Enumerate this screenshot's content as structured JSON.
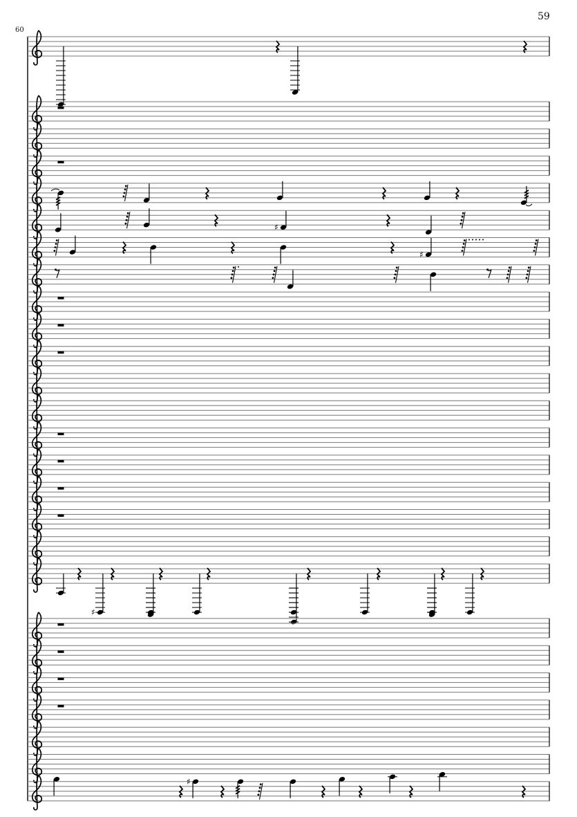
{
  "page_number": "59",
  "measure_number": "60",
  "clef": "treble",
  "colors": {
    "ink": "#000000",
    "staff_line": "#777777"
  },
  "staves": [
    {
      "events": [
        {
          "type": "note",
          "pitches": [
            "F1"
          ],
          "dur": "quarter"
        },
        {
          "type": "rest",
          "dur": "quarter"
        },
        {
          "type": "note",
          "pitches": [
            "D2"
          ],
          "dur": "quarter"
        },
        {
          "type": "rest",
          "dur": "quarter"
        }
      ]
    },
    {
      "events": [
        {
          "type": "rest",
          "dur": "whole"
        }
      ]
    },
    {
      "events": []
    },
    {
      "events": [
        {
          "type": "rest",
          "dur": "whole"
        }
      ]
    },
    {
      "events": [
        {
          "type": "note",
          "pitches": [
            "B4"
          ],
          "dur": "32nd",
          "tie_in": true
        },
        {
          "type": "rest",
          "dur": "32nd"
        },
        {
          "type": "note",
          "pitches": [
            "F4"
          ],
          "dur": "quarter"
        },
        {
          "type": "rest",
          "dur": "quarter"
        },
        {
          "type": "note",
          "pitches": [
            "G4"
          ],
          "dur": "quarter"
        },
        {
          "type": "rest",
          "dur": "quarter"
        },
        {
          "type": "note",
          "pitches": [
            "G4"
          ],
          "dur": "quarter"
        },
        {
          "type": "rest",
          "dur": "quarter"
        },
        {
          "type": "note",
          "pitches": [
            "E4"
          ],
          "dur": "32nd",
          "tie_out": true
        }
      ]
    },
    {
      "events": [
        {
          "type": "note",
          "pitches": [
            "E4"
          ],
          "dur": "quarter"
        },
        {
          "type": "rest",
          "dur": "32nd"
        },
        {
          "type": "note",
          "pitches": [
            "G4"
          ],
          "dur": "quarter"
        },
        {
          "type": "rest",
          "dur": "quarter"
        },
        {
          "type": "note",
          "pitches": [
            "F4"
          ],
          "acc": "#",
          "dur": "quarter"
        },
        {
          "type": "rest",
          "dur": "quarter"
        },
        {
          "type": "note",
          "pitches": [
            "D4"
          ],
          "dur": "quarter"
        },
        {
          "type": "rest",
          "dur": "32nd"
        }
      ]
    },
    {
      "events": [
        {
          "type": "rest",
          "dur": "32nd"
        },
        {
          "type": "note",
          "pitches": [
            "G4"
          ],
          "dur": "quarter"
        },
        {
          "type": "rest",
          "dur": "quarter"
        },
        {
          "type": "note",
          "pitches": [
            "B4"
          ],
          "dur": "quarter"
        },
        {
          "type": "rest",
          "dur": "quarter"
        },
        {
          "type": "note",
          "pitches": [
            "B4"
          ],
          "dur": "quarter"
        },
        {
          "type": "rest",
          "dur": "quarter"
        },
        {
          "type": "note",
          "pitches": [
            "F4"
          ],
          "acc": "#",
          "dur": "quarter"
        },
        {
          "type": "rest",
          "dur": "32nd",
          "dots": 5
        },
        {
          "type": "rest",
          "dur": "32nd"
        }
      ]
    },
    {
      "events": [
        {
          "type": "rest",
          "dur": "eighth"
        },
        {
          "type": "rest",
          "dur": "32nd",
          "dots": 1
        },
        {
          "type": "rest",
          "dur": "32nd"
        },
        {
          "type": "note",
          "pitches": [
            "D4"
          ],
          "dur": "quarter"
        },
        {
          "type": "rest",
          "dur": "32nd"
        },
        {
          "type": "note",
          "pitches": [
            "B4"
          ],
          "dur": "quarter"
        },
        {
          "type": "rest",
          "dur": "eighth"
        },
        {
          "type": "rest",
          "dur": "32nd"
        },
        {
          "type": "rest",
          "dur": "32nd"
        }
      ]
    },
    {
      "events": [
        {
          "type": "rest",
          "dur": "whole"
        }
      ]
    },
    {
      "events": [
        {
          "type": "rest",
          "dur": "whole"
        }
      ]
    },
    {
      "events": [
        {
          "type": "rest",
          "dur": "whole"
        }
      ]
    },
    {
      "events": []
    },
    {
      "events": []
    },
    {
      "events": [
        {
          "type": "rest",
          "dur": "whole"
        }
      ]
    },
    {
      "events": [
        {
          "type": "rest",
          "dur": "whole"
        }
      ]
    },
    {
      "events": [
        {
          "type": "rest",
          "dur": "whole"
        }
      ]
    },
    {
      "events": [
        {
          "type": "rest",
          "dur": "whole"
        }
      ]
    },
    {
      "events": []
    },
    {
      "events": [
        {
          "type": "note",
          "pitches": [
            "A3"
          ],
          "dur": "quarter"
        },
        {
          "type": "rest",
          "dur": "quarter"
        },
        {
          "type": "note",
          "pitches": [
            "G2"
          ],
          "acc": "#",
          "dur": "quarter"
        },
        {
          "type": "rest",
          "dur": "quarter"
        },
        {
          "type": "note",
          "pitches": [
            "F2",
            "G2"
          ],
          "dur": "quarter"
        },
        {
          "type": "rest",
          "dur": "quarter"
        },
        {
          "type": "note",
          "pitches": [
            "G2"
          ],
          "dur": "quarter"
        },
        {
          "type": "rest",
          "dur": "quarter"
        },
        {
          "type": "note",
          "pitches": [
            "C2",
            "G2"
          ],
          "dur": "quarter"
        },
        {
          "type": "rest",
          "dur": "quarter"
        },
        {
          "type": "note",
          "pitches": [
            "G2"
          ],
          "dur": "quarter"
        },
        {
          "type": "rest",
          "dur": "quarter"
        },
        {
          "type": "note",
          "pitches": [
            "F2",
            "G2"
          ],
          "dur": "quarter"
        },
        {
          "type": "rest",
          "dur": "quarter"
        },
        {
          "type": "note",
          "pitches": [
            "G2"
          ],
          "dur": "quarter"
        },
        {
          "type": "rest",
          "dur": "quarter"
        }
      ]
    },
    {
      "events": [
        {
          "type": "rest",
          "dur": "whole"
        }
      ]
    },
    {
      "events": [
        {
          "type": "rest",
          "dur": "whole"
        }
      ]
    },
    {
      "events": [
        {
          "type": "rest",
          "dur": "whole"
        }
      ]
    },
    {
      "events": [
        {
          "type": "rest",
          "dur": "whole"
        }
      ]
    },
    {
      "events": []
    },
    {
      "events": []
    },
    {
      "events": [
        {
          "type": "note",
          "pitches": [
            "G5"
          ],
          "dur": "quarter"
        },
        {
          "type": "rest",
          "dur": "quarter"
        },
        {
          "type": "note",
          "pitches": [
            "F5"
          ],
          "acc": "#",
          "dur": "quarter"
        },
        {
          "type": "rest",
          "dur": "quarter"
        },
        {
          "type": "note",
          "pitches": [
            "F5"
          ],
          "dur": "32nd"
        },
        {
          "type": "rest",
          "dur": "32nd"
        },
        {
          "type": "note",
          "pitches": [
            "F5"
          ],
          "dur": "quarter"
        },
        {
          "type": "rest",
          "dur": "quarter"
        },
        {
          "type": "note",
          "pitches": [
            "G5"
          ],
          "dur": "quarter"
        },
        {
          "type": "rest",
          "dur": "quarter"
        },
        {
          "type": "note",
          "pitches": [
            "A5"
          ],
          "dur": "quarter"
        },
        {
          "type": "rest",
          "dur": "quarter"
        },
        {
          "type": "note",
          "pitches": [
            "B5"
          ],
          "dur": "quarter"
        },
        {
          "type": "rest",
          "dur": "quarter"
        }
      ]
    }
  ]
}
